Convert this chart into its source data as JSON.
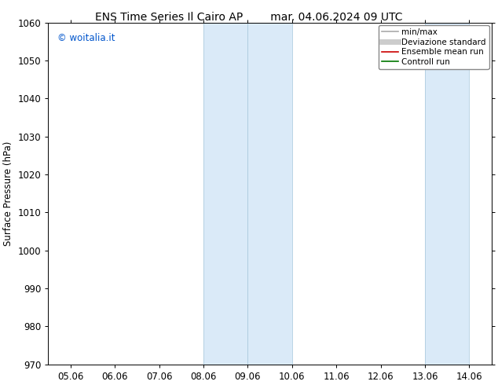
{
  "title_left": "ENS Time Series Il Cairo AP",
  "title_right": "mar. 04.06.2024 09 UTC",
  "ylabel": "Surface Pressure (hPa)",
  "ylim": [
    970,
    1060
  ],
  "yticks": [
    970,
    980,
    990,
    1000,
    1010,
    1020,
    1030,
    1040,
    1050,
    1060
  ],
  "xtick_labels": [
    "05.06",
    "06.06",
    "07.06",
    "08.06",
    "09.06",
    "10.06",
    "11.06",
    "12.06",
    "13.06",
    "14.06"
  ],
  "watermark": "© woitalia.it",
  "watermark_color": "#0055cc",
  "bg_color": "#ffffff",
  "shaded_regions": [
    {
      "xstart": 3,
      "xend": 4
    },
    {
      "xstart": 4,
      "xend": 5
    },
    {
      "xstart": 8,
      "xend": 9
    }
  ],
  "shaded_color": "#daeaf8",
  "shaded_edge_color": "#b0cde0",
  "legend_entries": [
    {
      "label": "min/max",
      "color": "#aaaaaa",
      "lw": 1.2,
      "style": "solid"
    },
    {
      "label": "Deviazione standard",
      "color": "#cccccc",
      "lw": 5,
      "style": "solid"
    },
    {
      "label": "Ensemble mean run",
      "color": "#cc0000",
      "lw": 1.2,
      "style": "solid"
    },
    {
      "label": "Controll run",
      "color": "#007700",
      "lw": 1.2,
      "style": "solid"
    }
  ],
  "font_size_title": 10,
  "font_size_legend": 7.5,
  "font_size_ticks": 8.5,
  "font_size_ylabel": 8.5
}
